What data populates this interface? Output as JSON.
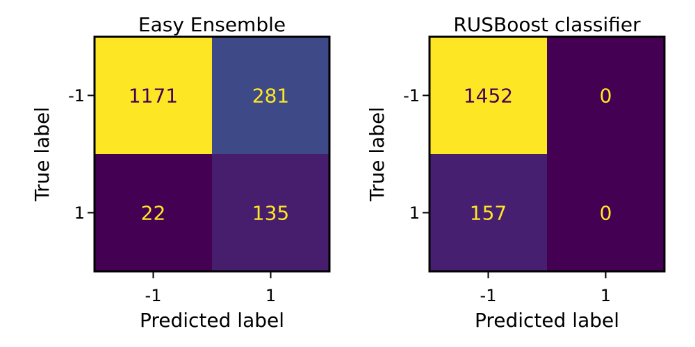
{
  "chart_data": [
    {
      "type": "heatmap",
      "title": "Easy Ensemble",
      "xlabel": "Predicted label",
      "ylabel": "True label",
      "x_tick_labels": [
        "-1",
        "1"
      ],
      "y_tick_labels": [
        "-1",
        "1"
      ],
      "matrix": [
        [
          1171,
          281
        ],
        [
          22,
          135
        ]
      ],
      "colormap": "viridis",
      "colorbar": false
    },
    {
      "type": "heatmap",
      "title": "RUSBoost classifier",
      "xlabel": "Predicted label",
      "ylabel": "True label",
      "x_tick_labels": [
        "-1",
        "1"
      ],
      "y_tick_labels": [
        "-1",
        "1"
      ],
      "matrix": [
        [
          1452,
          0
        ],
        [
          157,
          0
        ]
      ],
      "colormap": "viridis",
      "colorbar": false
    }
  ],
  "colors": {
    "viridis_low": "#440154",
    "viridis_high": "#fde725",
    "text_on_dark": "#fde725",
    "text_on_light": "#440154"
  }
}
